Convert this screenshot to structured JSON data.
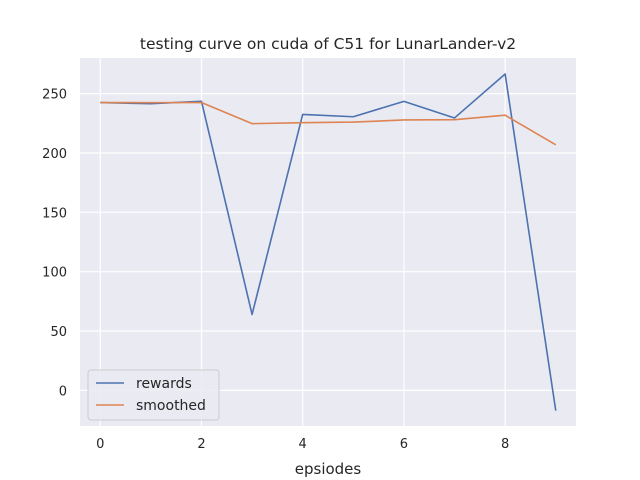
{
  "chart_data": {
    "type": "line",
    "title": "testing curve on cuda of C51 for LunarLander-v2",
    "xlabel": "epsiodes",
    "ylabel": "",
    "x": [
      0,
      1,
      2,
      3,
      4,
      5,
      6,
      7,
      8,
      9
    ],
    "xlim": [
      -0.4,
      9.4
    ],
    "ylim": [
      -30,
      280
    ],
    "xticks": [
      0,
      2,
      4,
      6,
      8
    ],
    "yticks": [
      0,
      50,
      100,
      150,
      200,
      250
    ],
    "grid": true,
    "legend_position": "lower-left",
    "background": "#eaeaf2",
    "series": [
      {
        "name": "rewards",
        "color": "#4c72b0",
        "values": [
          242.5,
          241.5,
          243.5,
          64,
          232.5,
          230.5,
          243.5,
          229.5,
          266.5,
          -17
        ]
      },
      {
        "name": "smoothed",
        "color": "#dd8452",
        "values": [
          242.5,
          242.4,
          242.5,
          224.7,
          225.5,
          226.0,
          227.8,
          228.0,
          231.8,
          206.9
        ]
      }
    ]
  }
}
